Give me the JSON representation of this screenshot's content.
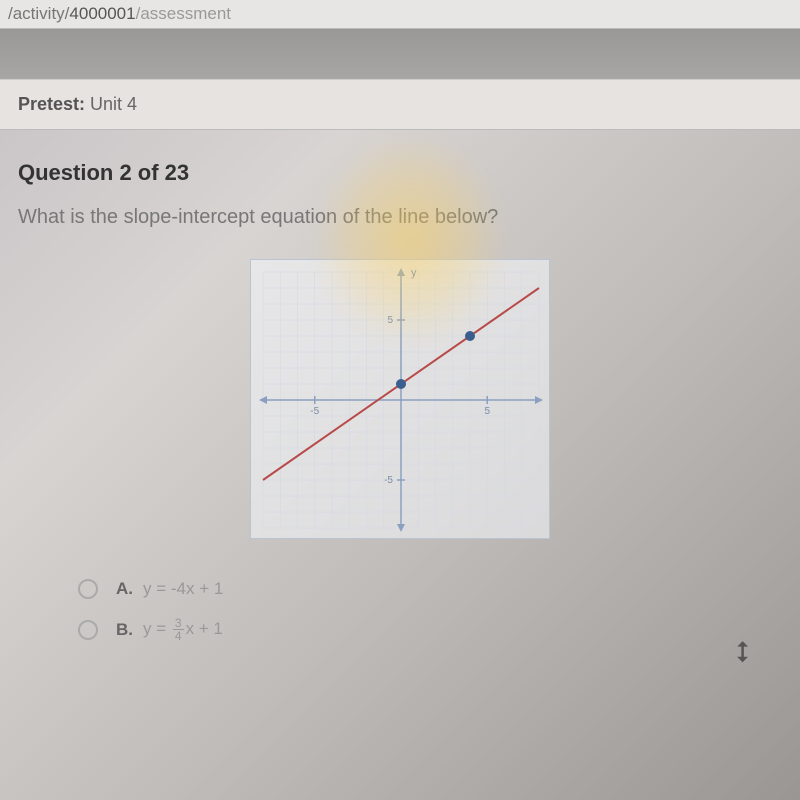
{
  "url": {
    "part1": "/activity/",
    "part2": "4000001",
    "part3": "/assessment"
  },
  "pretest": {
    "label": "Pretest:",
    "unit": "Unit 4"
  },
  "question": {
    "number": "Question 2 of 23",
    "text": "What is the slope-intercept equation of the line below?"
  },
  "chart": {
    "type": "line",
    "background_color": "rgba(245,248,252,0.55)",
    "border_color": "#b8c4d4",
    "grid_color": "#cfd8e6",
    "axis_color": "#8aa0c0",
    "xlim": [
      -8,
      8
    ],
    "ylim": [
      -8,
      8
    ],
    "xtick_major": [
      -5,
      5
    ],
    "ytick_major": [
      -5,
      5
    ],
    "y_axis_label": "y",
    "line": {
      "color": "#b84a4a",
      "width": 2,
      "points_through": [
        [
          -8,
          -5
        ],
        [
          0,
          1
        ],
        [
          8,
          7
        ]
      ]
    },
    "dots": {
      "color": "#3a5f8f",
      "radius": 5,
      "positions": [
        [
          0,
          1
        ],
        [
          4,
          4
        ]
      ]
    }
  },
  "answers": {
    "A": {
      "label": "A.",
      "prefix": "y = ",
      "expr": "-4x + 1"
    },
    "B": {
      "label": "B.",
      "prefix": "y = ",
      "frac_num": "3",
      "frac_den": "4",
      "suffix": "x + 1"
    }
  }
}
